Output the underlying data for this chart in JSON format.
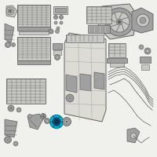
{
  "background_color": "#f0f0ec",
  "border_color": "#cccccc",
  "highlight_color": "#00b8d4",
  "gc": "#a0a0a0",
  "gd": "#606060",
  "gl": "#c8c8c4",
  "figsize": [
    2.0,
    2.0
  ],
  "dpi": 100
}
